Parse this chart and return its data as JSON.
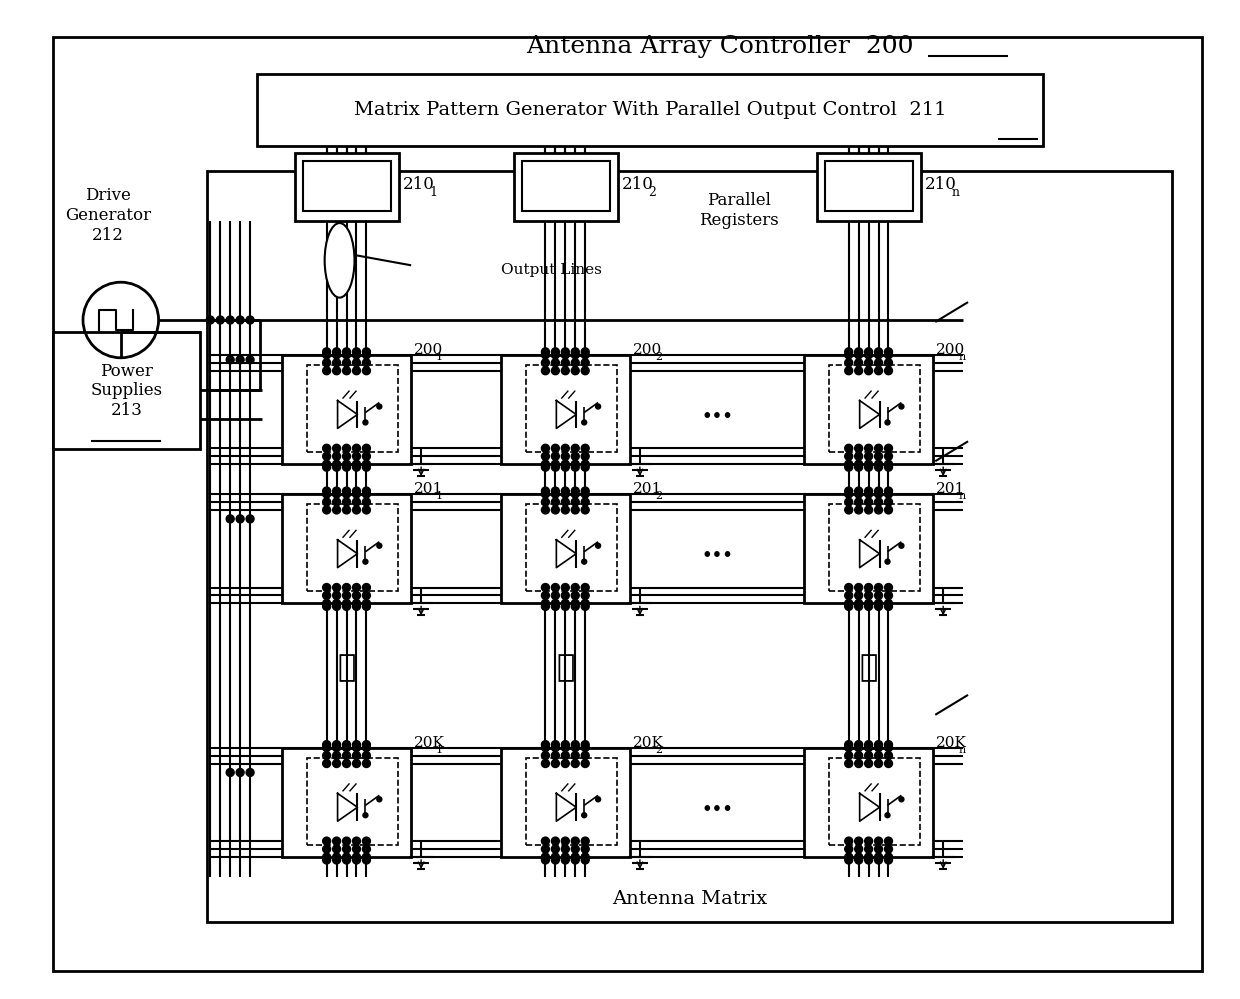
{
  "bg_color": "#ffffff",
  "line_color": "#000000",
  "title": "Antenna Array Controller  200",
  "subtitle": "Matrix Pattern Generator With Parallel Output Control  211",
  "antenna_matrix_label": "Antenna Matrix",
  "drive_gen_label": "Drive\nGenerator\n212",
  "power_supplies_label": "Power\nSupplies\n213",
  "output_lines_label": "Output Lines",
  "parallel_registers_label": "Parallel\nRegisters",
  "reg_labels": [
    "210",
    "210",
    "210"
  ],
  "reg_subs": [
    "1",
    "2",
    "n"
  ],
  "cell_row1_labels": [
    "200",
    "200",
    "200"
  ],
  "cell_row1_subs": [
    "1",
    "2",
    "n"
  ],
  "cell_row2_labels": [
    "201",
    "201",
    "201"
  ],
  "cell_row2_subs": [
    "1",
    "2",
    "n"
  ],
  "cell_rowK_labels": [
    "20K",
    "20K",
    "20K"
  ],
  "cell_rowK_subs": [
    "1",
    "2",
    "n"
  ],
  "font_size_title": 18,
  "font_size_label": 12,
  "font_size_small": 10
}
